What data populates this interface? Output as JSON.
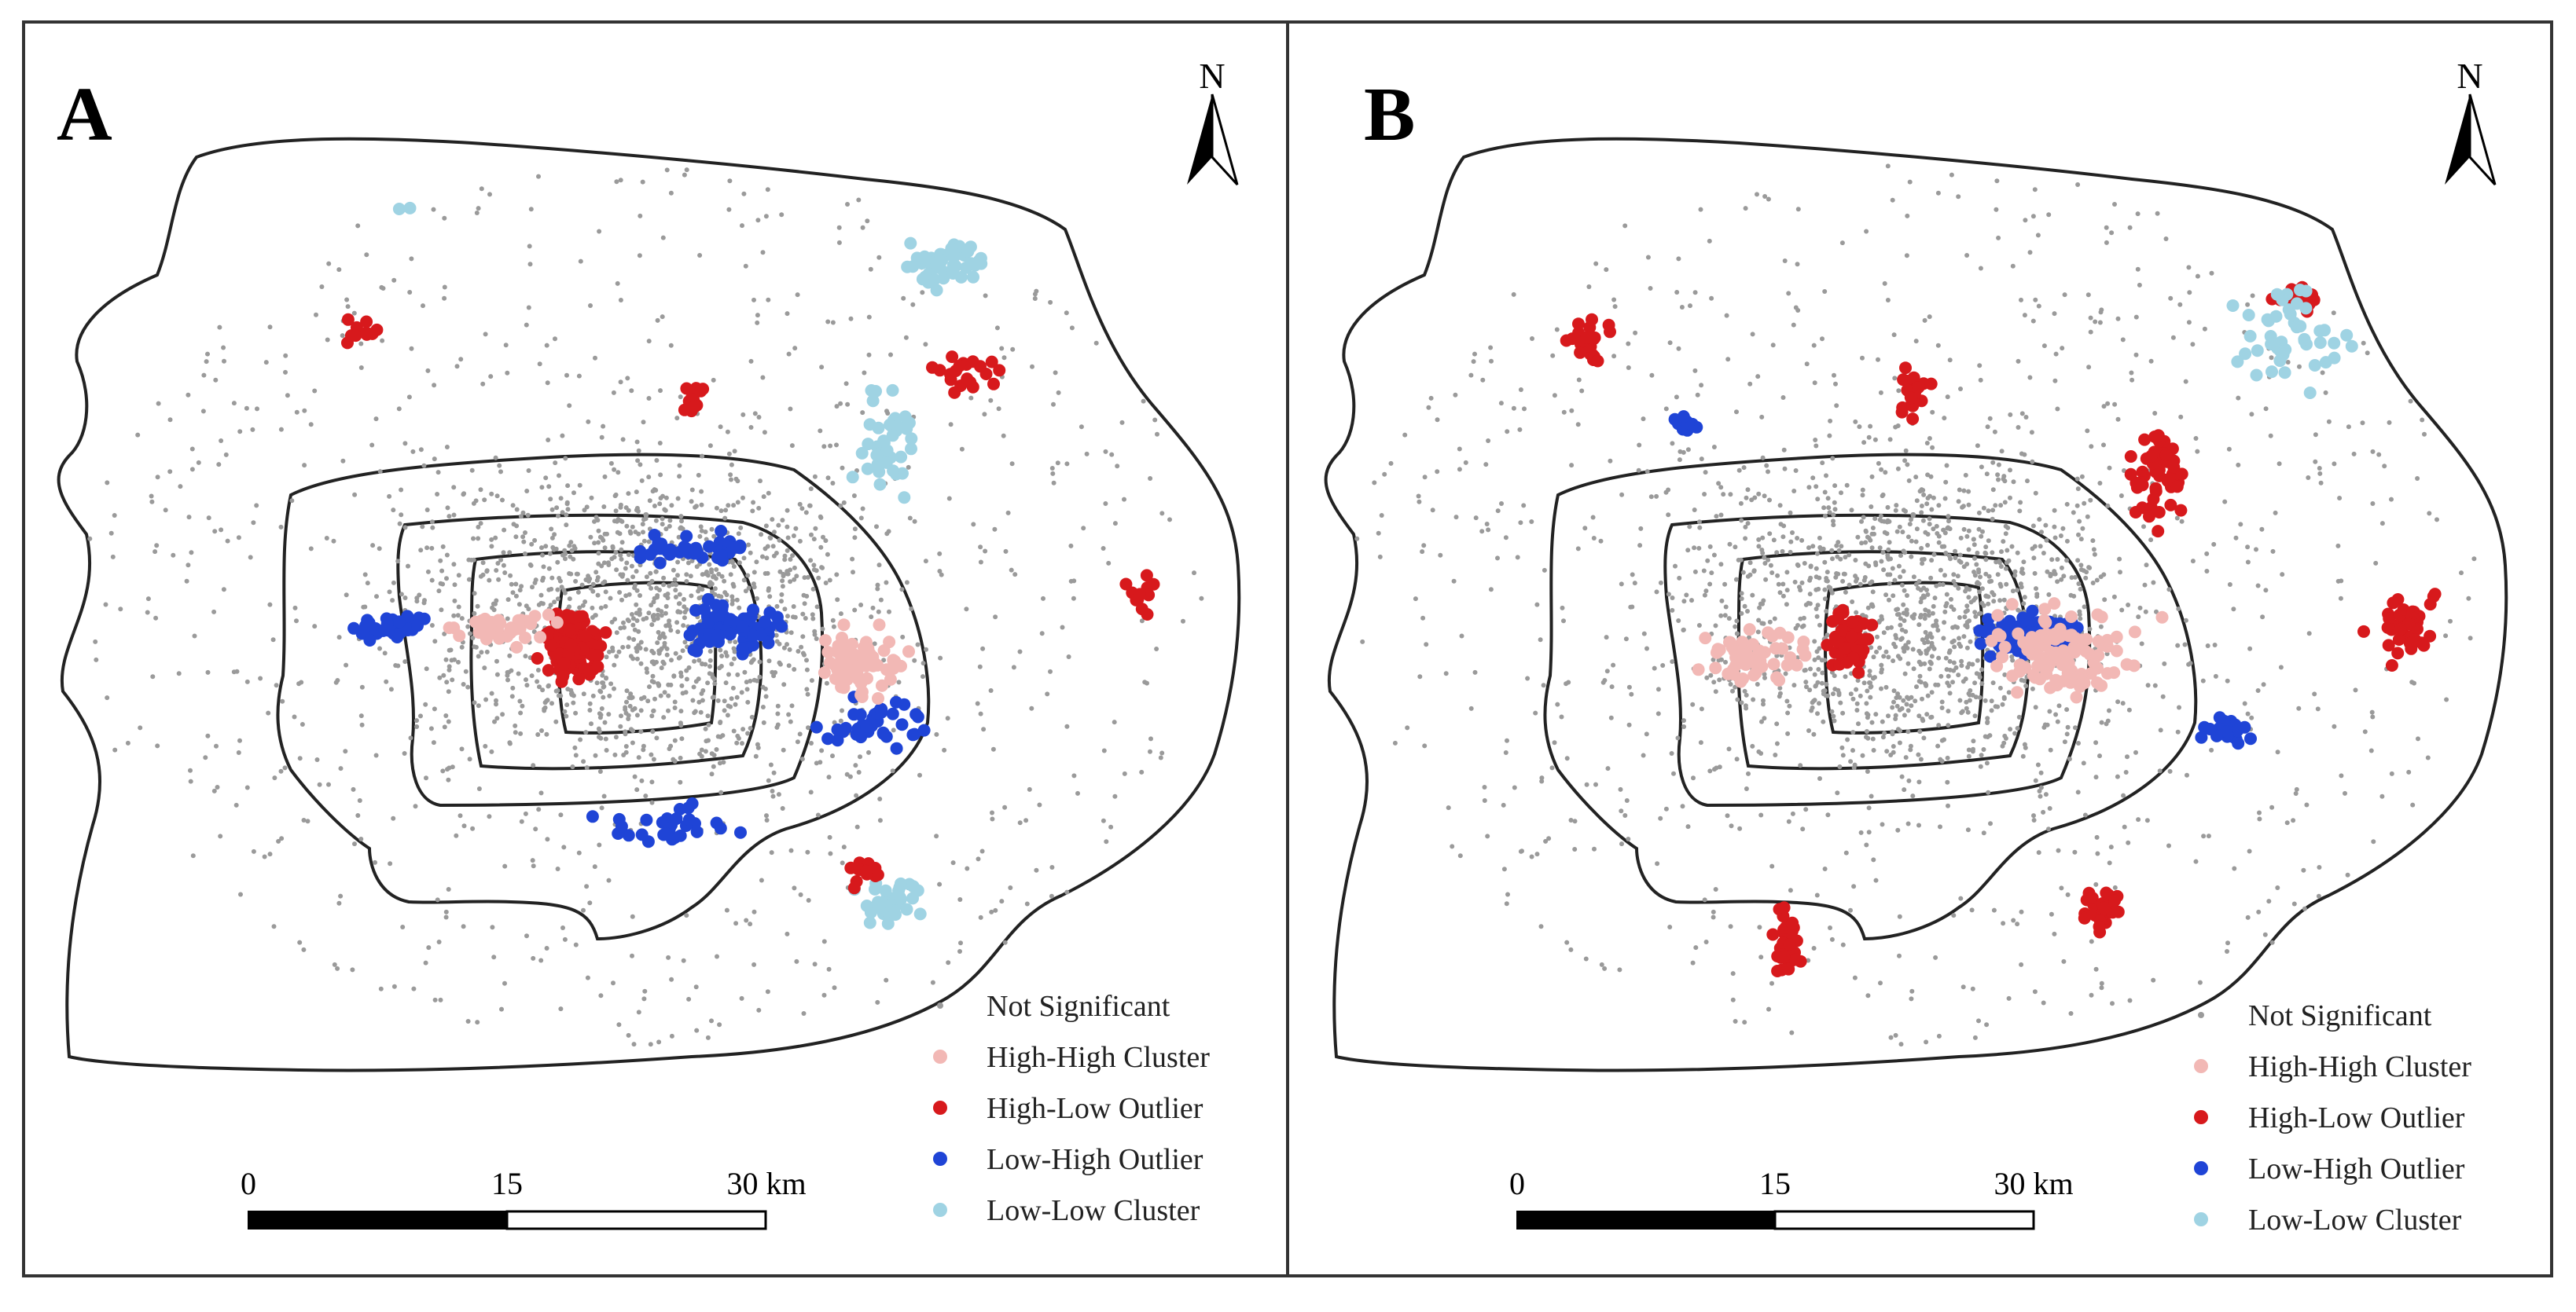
{
  "figure": {
    "panels": [
      {
        "id": "A",
        "label": "A",
        "north_label": "N",
        "scale_labels": [
          "0",
          "15",
          "30 km"
        ],
        "legend": [
          {
            "key": "ns",
            "label": "Not Significant"
          },
          {
            "key": "hh",
            "label": "High-High Cluster"
          },
          {
            "key": "hl",
            "label": "High-Low Outlier"
          },
          {
            "key": "lh",
            "label": "Low-High Outlier"
          },
          {
            "key": "ll",
            "label": "Low-Low Cluster"
          }
        ]
      },
      {
        "id": "B",
        "label": "B",
        "north_label": "N",
        "scale_labels": [
          "0",
          "15",
          "30 km"
        ],
        "legend": [
          {
            "key": "ns",
            "label": "Not Significant"
          },
          {
            "key": "hh",
            "label": "High-High Cluster"
          },
          {
            "key": "hl",
            "label": "High-Low Outlier"
          },
          {
            "key": "lh",
            "label": "Low-High Outlier"
          },
          {
            "key": "ll",
            "label": "Low-Low Cluster"
          }
        ]
      }
    ],
    "colors": {
      "ns": "#9a9a9a",
      "hh": "#f2b8b5",
      "hl": "#d7191c",
      "lh": "#1f44d6",
      "ll": "#9fd3e3",
      "outline": "#222222",
      "frame": "#333333"
    },
    "icons": {
      "north_arrow": "north-arrow-icon",
      "scale_bar": "scale-bar-icon"
    }
  }
}
